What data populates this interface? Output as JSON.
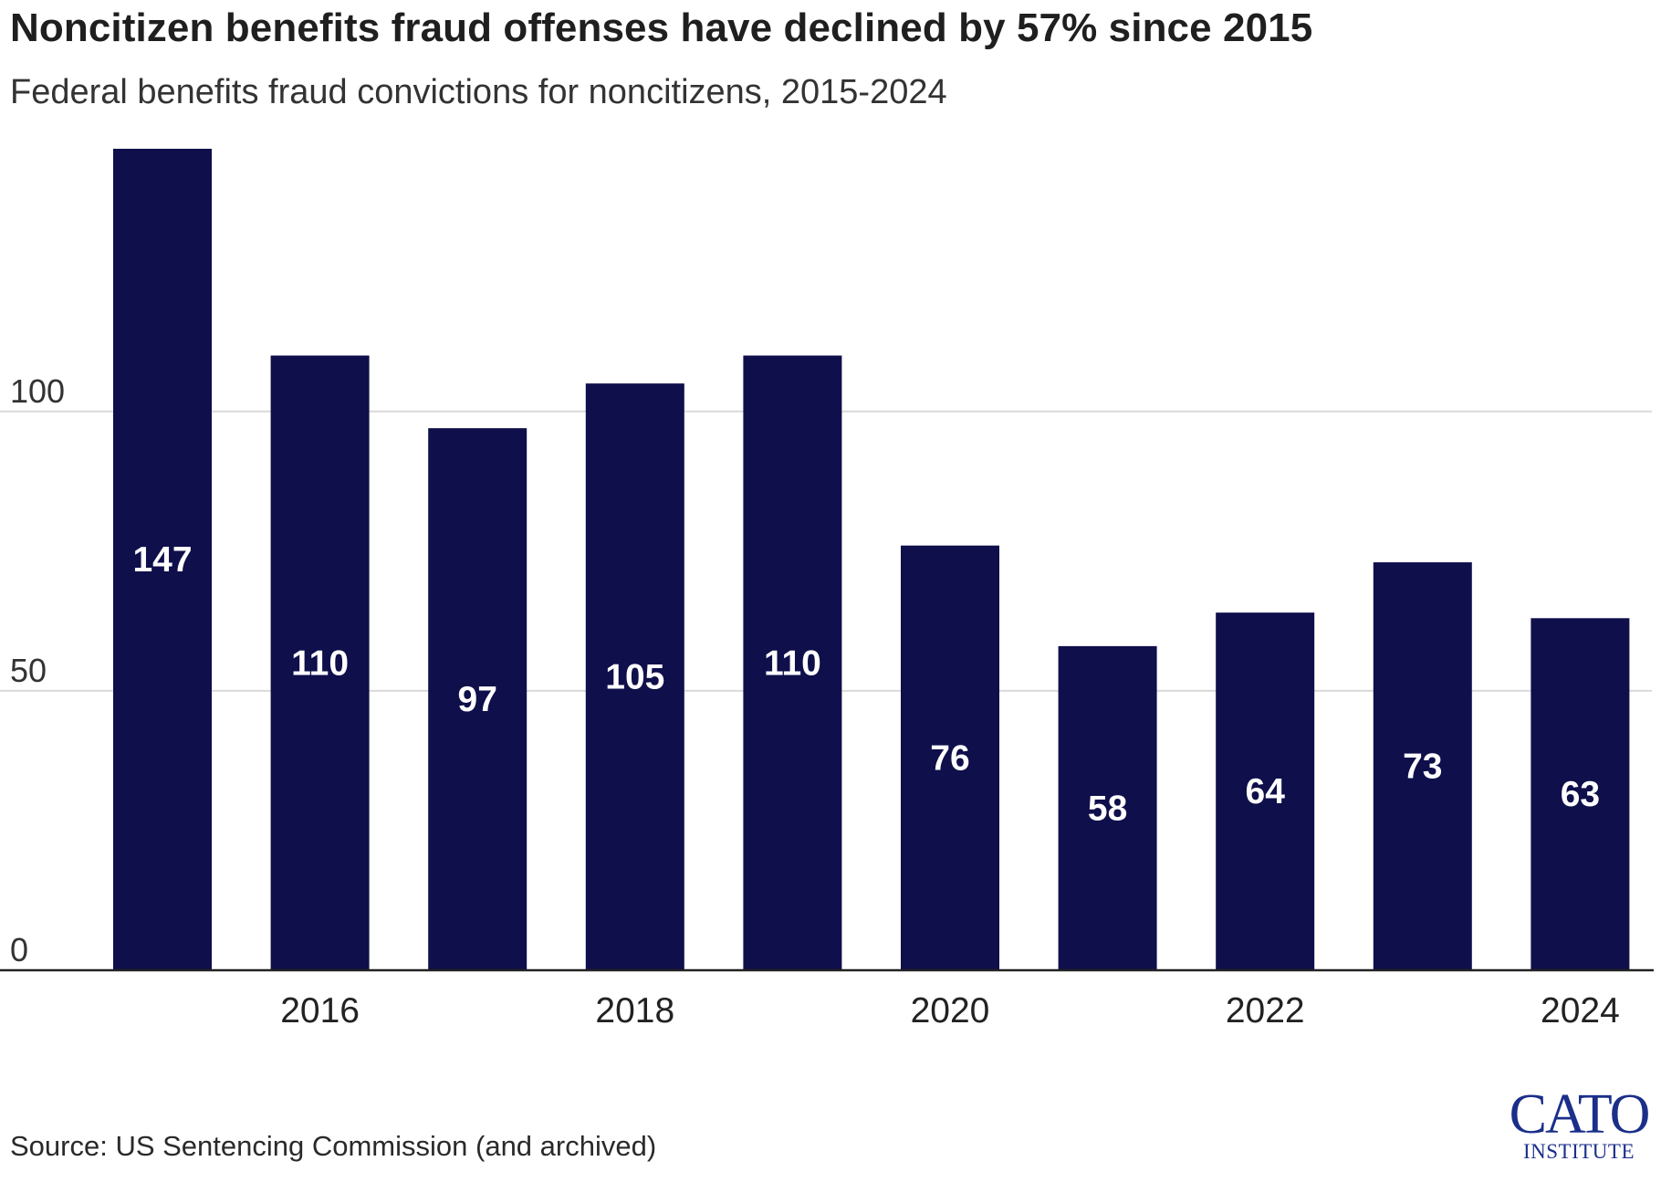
{
  "title": "Noncitizen benefits fraud offenses have declined by 57% since 2015",
  "subtitle": "Federal benefits fraud convictions for noncitizens, 2015-2024",
  "source": "Source: US Sentencing Commission (and archived)",
  "logo": {
    "main": "CATO",
    "sub": "INSTITUTE"
  },
  "colors": {
    "bar": "#0f0f4b",
    "bar_label": "#ffffff",
    "grid": "#d9d9d9",
    "axis": "#222222",
    "text": "#222222",
    "logo": "#1b2f8a"
  },
  "chart_data": {
    "type": "bar",
    "title": "Noncitizen benefits fraud offenses have declined by 57% since 2015",
    "subtitle": "Federal benefits fraud convictions for noncitizens, 2015-2024",
    "categories": [
      "2015",
      "2016",
      "2017",
      "2018",
      "2019",
      "2020",
      "2021",
      "2022",
      "2023",
      "2024"
    ],
    "values": [
      147,
      110,
      97,
      105,
      110,
      76,
      58,
      64,
      73,
      63
    ],
    "data_labels": [
      "147",
      "110",
      "97",
      "105",
      "110",
      "76",
      "58",
      "64",
      "73",
      "63"
    ],
    "x_tick_labels": [
      "2016",
      "2018",
      "2020",
      "2022",
      "2024"
    ],
    "y_ticks": [
      0,
      50,
      100
    ],
    "y_tick_labels": [
      "0",
      "50",
      "100"
    ],
    "ylim": [
      0,
      147
    ],
    "xlabel": "",
    "ylabel": "",
    "grid": true,
    "legend": "none",
    "label_position": "center"
  }
}
